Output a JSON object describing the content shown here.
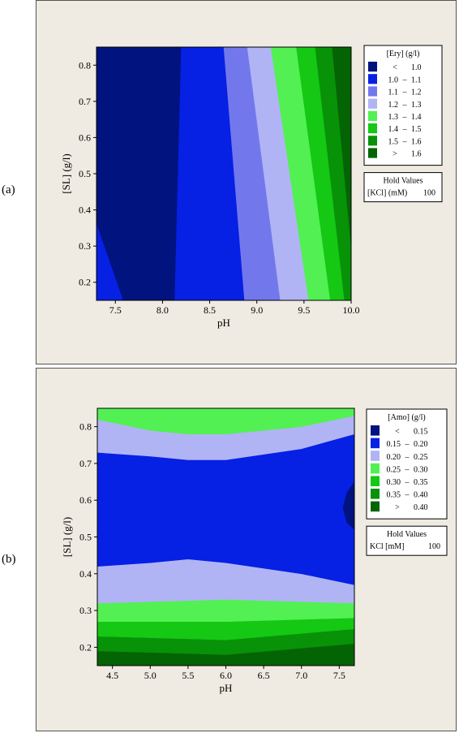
{
  "chart_data": [
    {
      "type": "heatmap",
      "panel_label": "(a)",
      "xlabel": "pH",
      "ylabel": "[SL] (g/l)",
      "xlim": [
        7.3,
        10.0
      ],
      "ylim": [
        0.15,
        0.85
      ],
      "xticks": [
        "7.5",
        "8.0",
        "8.5",
        "9.0",
        "9.5",
        "10.0"
      ],
      "xtick_values": [
        7.5,
        8.0,
        8.5,
        9.0,
        9.5,
        10.0
      ],
      "yticks": [
        "0.2",
        "0.3",
        "0.4",
        "0.5",
        "0.6",
        "0.7",
        "0.8"
      ],
      "ytick_values": [
        0.2,
        0.3,
        0.4,
        0.5,
        0.6,
        0.7,
        0.8
      ],
      "legend_title": "[Ery] (g/l)",
      "legend_placement": "right",
      "legend": [
        {
          "op": "<",
          "lo": "",
          "dash": "",
          "hi": "1.0",
          "color": "#00137e"
        },
        {
          "op": "",
          "lo": "1.0",
          "dash": "–",
          "hi": "1.1",
          "color": "#0620e4"
        },
        {
          "op": "",
          "lo": "1.1",
          "dash": "–",
          "hi": "1.2",
          "color": "#7278ec"
        },
        {
          "op": "",
          "lo": "1.2",
          "dash": "–",
          "hi": "1.3",
          "color": "#b0b4f4"
        },
        {
          "op": "",
          "lo": "1.3",
          "dash": "–",
          "hi": "1.4",
          "color": "#52f052"
        },
        {
          "op": "",
          "lo": "1.4",
          "dash": "–",
          "hi": "1.5",
          "color": "#14c814"
        },
        {
          "op": "",
          "lo": "1.5",
          "dash": "–",
          "hi": "1.6",
          "color": "#089208"
        },
        {
          "op": ">",
          "lo": "",
          "dash": "",
          "hi": "1.6",
          "color": "#046404"
        }
      ],
      "hold_title": "Hold Values",
      "hold_var": "[KCl] (mM)",
      "hold_val": "100",
      "contours": [
        {
          "color": "#00137e",
          "poly": [
            [
              7.3,
              0.85
            ],
            [
              8.2,
              0.85
            ],
            [
              8.13,
              0.15
            ],
            [
              7.58,
              0.15
            ],
            [
              7.3,
              0.36
            ]
          ]
        },
        {
          "color": "#0620e4",
          "poly": [
            [
              7.3,
              0.36
            ],
            [
              7.58,
              0.15
            ],
            [
              7.3,
              0.15
            ]
          ]
        },
        {
          "color": "#0620e4",
          "poly": [
            [
              8.2,
              0.85
            ],
            [
              8.65,
              0.85
            ],
            [
              8.87,
              0.15
            ],
            [
              8.13,
              0.15
            ]
          ]
        },
        {
          "color": "#7278ec",
          "poly": [
            [
              8.65,
              0.85
            ],
            [
              8.9,
              0.85
            ],
            [
              9.25,
              0.15
            ],
            [
              8.87,
              0.15
            ]
          ]
        },
        {
          "color": "#b0b4f4",
          "poly": [
            [
              8.9,
              0.85
            ],
            [
              9.15,
              0.85
            ],
            [
              9.55,
              0.15
            ],
            [
              9.25,
              0.15
            ]
          ]
        },
        {
          "color": "#52f052",
          "poly": [
            [
              9.15,
              0.85
            ],
            [
              9.42,
              0.85
            ],
            [
              9.78,
              0.15
            ],
            [
              9.55,
              0.15
            ]
          ]
        },
        {
          "color": "#14c814",
          "poly": [
            [
              9.42,
              0.85
            ],
            [
              9.62,
              0.85
            ],
            [
              9.93,
              0.15
            ],
            [
              9.78,
              0.15
            ]
          ]
        },
        {
          "color": "#089208",
          "poly": [
            [
              9.62,
              0.85
            ],
            [
              9.8,
              0.85
            ],
            [
              10.0,
              0.3
            ],
            [
              10.0,
              0.15
            ],
            [
              9.93,
              0.15
            ]
          ]
        },
        {
          "color": "#046404",
          "poly": [
            [
              9.8,
              0.85
            ],
            [
              10.0,
              0.85
            ],
            [
              10.0,
              0.3
            ]
          ]
        }
      ]
    },
    {
      "type": "heatmap",
      "panel_label": "(b)",
      "xlabel": "pH",
      "ylabel": "[SL] (g/l)",
      "xlim": [
        4.3,
        7.7
      ],
      "ylim": [
        0.15,
        0.85
      ],
      "xticks": [
        "4.5",
        "5.0",
        "5.5",
        "6.0",
        "6.5",
        "7.0",
        "7.5"
      ],
      "xtick_values": [
        4.5,
        5.0,
        5.5,
        6.0,
        6.5,
        7.0,
        7.5
      ],
      "yticks": [
        "0.2",
        "0.3",
        "0.4",
        "0.5",
        "0.6",
        "0.7",
        "0.8"
      ],
      "ytick_values": [
        0.2,
        0.3,
        0.4,
        0.5,
        0.6,
        0.7,
        0.8
      ],
      "legend_title": "[Amo] (g/l)",
      "legend_placement": "right",
      "legend": [
        {
          "op": "<",
          "lo": "",
          "dash": "",
          "hi": "0.15",
          "color": "#00137e"
        },
        {
          "op": "",
          "lo": "0.15",
          "dash": "–",
          "hi": "0.20",
          "color": "#0620e4"
        },
        {
          "op": "",
          "lo": "0.20",
          "dash": "–",
          "hi": "0.25",
          "color": "#b0b4f4"
        },
        {
          "op": "",
          "lo": "0.25",
          "dash": "–",
          "hi": "0.30",
          "color": "#52f052"
        },
        {
          "op": "",
          "lo": "0.30",
          "dash": "–",
          "hi": "0.35",
          "color": "#14c814"
        },
        {
          "op": "",
          "lo": "0.35",
          "dash": "–",
          "hi": "0.40",
          "color": "#089208"
        },
        {
          "op": ">",
          "lo": "",
          "dash": "",
          "hi": "0.40",
          "color": "#046404"
        }
      ],
      "hold_title": "Hold Values",
      "hold_var": "KCl [mM]",
      "hold_val": "100",
      "contours": [
        {
          "color": "#046404",
          "poly": [
            [
              4.3,
              0.15
            ],
            [
              7.7,
              0.15
            ],
            [
              7.7,
              0.21
            ],
            [
              6.0,
              0.18
            ],
            [
              4.3,
              0.19
            ]
          ]
        },
        {
          "color": "#089208",
          "poly": [
            [
              4.3,
              0.19
            ],
            [
              6.0,
              0.18
            ],
            [
              7.7,
              0.21
            ],
            [
              7.7,
              0.25
            ],
            [
              6.0,
              0.22
            ],
            [
              4.3,
              0.23
            ]
          ]
        },
        {
          "color": "#14c814",
          "poly": [
            [
              4.3,
              0.23
            ],
            [
              6.0,
              0.22
            ],
            [
              7.7,
              0.25
            ],
            [
              7.7,
              0.28
            ],
            [
              6.0,
              0.27
            ],
            [
              4.3,
              0.27
            ]
          ]
        },
        {
          "color": "#52f052",
          "poly": [
            [
              4.3,
              0.27
            ],
            [
              6.0,
              0.27
            ],
            [
              7.7,
              0.28
            ],
            [
              7.7,
              0.32
            ],
            [
              6.0,
              0.33
            ],
            [
              4.3,
              0.32
            ]
          ]
        },
        {
          "color": "#b0b4f4",
          "poly": [
            [
              4.3,
              0.32
            ],
            [
              6.0,
              0.33
            ],
            [
              7.7,
              0.32
            ],
            [
              7.7,
              0.37
            ],
            [
              7.0,
              0.4
            ],
            [
              6.0,
              0.43
            ],
            [
              5.5,
              0.44
            ],
            [
              5.0,
              0.43
            ],
            [
              4.3,
              0.42
            ]
          ]
        },
        {
          "color": "#0620e4",
          "poly": [
            [
              4.3,
              0.42
            ],
            [
              5.0,
              0.43
            ],
            [
              5.5,
              0.44
            ],
            [
              6.0,
              0.43
            ],
            [
              7.0,
              0.4
            ],
            [
              7.7,
              0.37
            ],
            [
              7.7,
              0.78
            ],
            [
              7.0,
              0.74
            ],
            [
              6.0,
              0.71
            ],
            [
              5.5,
              0.71
            ],
            [
              5.0,
              0.72
            ],
            [
              4.3,
              0.73
            ]
          ]
        },
        {
          "color": "#00137e",
          "poly": [
            [
              7.7,
              0.52
            ],
            [
              7.6,
              0.54
            ],
            [
              7.55,
              0.58
            ],
            [
              7.6,
              0.62
            ],
            [
              7.7,
              0.65
            ]
          ]
        },
        {
          "color": "#b0b4f4",
          "poly": [
            [
              4.3,
              0.73
            ],
            [
              5.0,
              0.72
            ],
            [
              5.5,
              0.71
            ],
            [
              6.0,
              0.71
            ],
            [
              7.0,
              0.74
            ],
            [
              7.7,
              0.78
            ],
            [
              7.7,
              0.83
            ],
            [
              7.0,
              0.8
            ],
            [
              6.0,
              0.78
            ],
            [
              5.5,
              0.78
            ],
            [
              5.0,
              0.79
            ],
            [
              4.3,
              0.82
            ]
          ]
        },
        {
          "color": "#52f052",
          "poly": [
            [
              4.3,
              0.82
            ],
            [
              5.0,
              0.79
            ],
            [
              5.5,
              0.78
            ],
            [
              6.0,
              0.78
            ],
            [
              7.0,
              0.8
            ],
            [
              7.7,
              0.83
            ],
            [
              7.7,
              0.85
            ],
            [
              4.3,
              0.85
            ]
          ]
        }
      ]
    }
  ]
}
